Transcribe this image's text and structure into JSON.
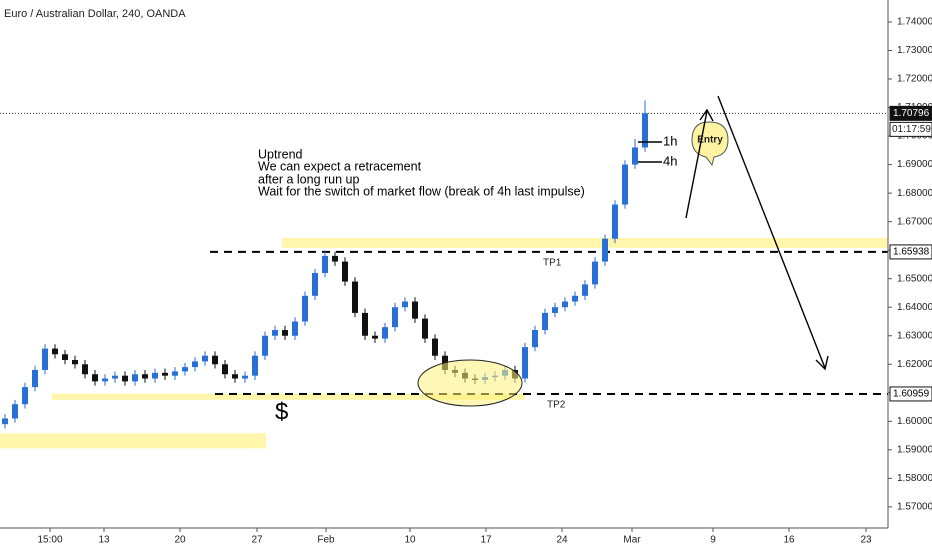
{
  "chart_data": {
    "type": "candlestick",
    "title": "Euro / Australian Dollar, 240, OANDA",
    "up_color": "#2a6fd6",
    "down_color": "#111111",
    "open": [
      1.599,
      1.601,
      1.606,
      1.612,
      1.618,
      1.6255,
      1.6235,
      1.6215,
      1.62,
      1.6165,
      1.614,
      1.615,
      1.616,
      1.614,
      1.6165,
      1.615,
      1.617,
      1.616,
      1.6175,
      1.619,
      1.621,
      1.623,
      1.62,
      1.6165,
      1.615,
      1.616,
      1.623,
      1.63,
      1.632,
      1.63,
      1.635,
      1.644,
      1.652,
      1.658,
      1.656,
      1.649,
      1.638,
      1.63,
      1.629,
      1.633,
      1.64,
      1.642,
      1.636,
      1.629,
      1.623,
      1.618,
      1.617,
      1.615,
      1.6145,
      1.6155,
      1.616,
      1.618,
      1.615,
      1.626,
      1.632,
      1.638,
      1.64,
      1.642,
      1.644,
      1.648,
      1.656,
      1.664,
      1.676,
      1.69,
      1.696
    ],
    "high": [
      1.6025,
      1.6075,
      1.6135,
      1.6195,
      1.627,
      1.627,
      1.625,
      1.623,
      1.6215,
      1.618,
      1.6165,
      1.6175,
      1.6175,
      1.618,
      1.618,
      1.6185,
      1.6185,
      1.619,
      1.6205,
      1.6225,
      1.6245,
      1.6245,
      1.6215,
      1.618,
      1.6175,
      1.6245,
      1.6315,
      1.6335,
      1.6335,
      1.6365,
      1.6455,
      1.6535,
      1.6595,
      1.6595,
      1.6575,
      1.6505,
      1.6395,
      1.6315,
      1.6345,
      1.6415,
      1.6435,
      1.6435,
      1.6375,
      1.6305,
      1.6245,
      1.6195,
      1.6185,
      1.6165,
      1.617,
      1.6175,
      1.6195,
      1.6195,
      1.6275,
      1.6335,
      1.6395,
      1.6415,
      1.6435,
      1.6455,
      1.6495,
      1.6575,
      1.6655,
      1.6775,
      1.6915,
      1.699,
      1.7125
    ],
    "low": [
      1.5975,
      1.5995,
      1.6045,
      1.6105,
      1.6165,
      1.622,
      1.62,
      1.6185,
      1.615,
      1.6125,
      1.6125,
      1.6135,
      1.6125,
      1.6125,
      1.6135,
      1.6135,
      1.6145,
      1.6145,
      1.616,
      1.6175,
      1.6195,
      1.6185,
      1.615,
      1.6135,
      1.6135,
      1.6145,
      1.6215,
      1.6285,
      1.6285,
      1.6285,
      1.6335,
      1.6425,
      1.6505,
      1.6545,
      1.6475,
      1.6365,
      1.6285,
      1.6275,
      1.6275,
      1.6315,
      1.6385,
      1.6345,
      1.6275,
      1.6215,
      1.6165,
      1.6155,
      1.6135,
      1.613,
      1.613,
      1.614,
      1.6145,
      1.6135,
      1.6135,
      1.6245,
      1.6305,
      1.6365,
      1.6385,
      1.6405,
      1.6425,
      1.6465,
      1.6545,
      1.6625,
      1.6745,
      1.6885,
      1.6945
    ],
    "close": [
      1.601,
      1.606,
      1.612,
      1.618,
      1.6255,
      1.6235,
      1.6215,
      1.62,
      1.6165,
      1.614,
      1.615,
      1.616,
      1.614,
      1.6165,
      1.615,
      1.617,
      1.616,
      1.6175,
      1.619,
      1.621,
      1.623,
      1.62,
      1.6165,
      1.615,
      1.616,
      1.623,
      1.63,
      1.632,
      1.63,
      1.635,
      1.644,
      1.652,
      1.658,
      1.656,
      1.649,
      1.638,
      1.63,
      1.629,
      1.633,
      1.64,
      1.642,
      1.636,
      1.629,
      1.623,
      1.618,
      1.617,
      1.615,
      1.6145,
      1.6155,
      1.616,
      1.618,
      1.615,
      1.626,
      1.632,
      1.638,
      1.64,
      1.642,
      1.644,
      1.648,
      1.656,
      1.664,
      1.676,
      1.69,
      1.696,
      1.708
    ],
    "ylim": [
      1.5626,
      1.7477
    ],
    "yticks": [
      {
        "value": 1.57,
        "label": "1.57000"
      },
      {
        "value": 1.58,
        "label": "1.58000"
      },
      {
        "value": 1.59,
        "label": "1.59000"
      },
      {
        "value": 1.6,
        "label": "1.60000"
      },
      {
        "value": 1.61,
        "label": "1.61000"
      },
      {
        "value": 1.62,
        "label": "1.62000"
      },
      {
        "value": 1.63,
        "label": "1.63000"
      },
      {
        "value": 1.64,
        "label": "1.64000"
      },
      {
        "value": 1.65,
        "label": "1.65000"
      },
      {
        "value": 1.66,
        "label": "1.66000"
      },
      {
        "value": 1.67,
        "label": "1.67000"
      },
      {
        "value": 1.68,
        "label": "1.68000"
      },
      {
        "value": 1.69,
        "label": "1.69000"
      },
      {
        "value": 1.7,
        "label": "1.70000"
      },
      {
        "value": 1.71,
        "label": "1.71000"
      },
      {
        "value": 1.72,
        "label": "1.72000"
      },
      {
        "value": 1.73,
        "label": "1.73000"
      },
      {
        "value": 1.74,
        "label": "1.74000"
      }
    ],
    "xlim": [
      0,
      88.8
    ],
    "xticks": [
      {
        "value": 5.0,
        "label": "15:00"
      },
      {
        "value": 10.4,
        "label": "13"
      },
      {
        "value": 18.0,
        "label": "20"
      },
      {
        "value": 25.7,
        "label": "27"
      },
      {
        "value": 32.6,
        "label": "Feb"
      },
      {
        "value": 41.0,
        "label": "10"
      },
      {
        "value": 48.6,
        "label": "17"
      },
      {
        "value": 56.2,
        "label": "24"
      },
      {
        "value": 63.2,
        "label": "Mar"
      },
      {
        "value": 71.3,
        "label": "9"
      },
      {
        "value": 78.9,
        "label": "16"
      },
      {
        "value": 86.6,
        "label": "23"
      }
    ],
    "current_price": {
      "value": 1.70796,
      "label": "1.70796"
    },
    "countdown": "01:17:59",
    "levels": [
      {
        "name": "TP1",
        "price": {
          "value": 1.65938,
          "label": "1.65938"
        },
        "start": 21.0
      },
      {
        "name": "TP2",
        "price": {
          "value": 1.60959,
          "label": "1.60959"
        },
        "start": 21.5
      }
    ],
    "zones": [
      {
        "top": 1.6643,
        "bottom": 1.6608,
        "start": 28.2,
        "end": 88.8
      },
      {
        "top": 1.6097,
        "bottom": 1.6075,
        "start": 5.2,
        "end": 52.5
      },
      {
        "top": 1.5958,
        "bottom": 1.5905,
        "start": 0,
        "end": 26.6
      }
    ],
    "notes": [
      "Uptrend",
      "We can expect a retracement",
      "after a long run up",
      "Wait for the switch of market flow (break of 4h last impulse)"
    ],
    "symbol_mark": "$",
    "timeframe_marks": [
      "1h",
      "4h"
    ],
    "entry_label": "Entry"
  }
}
